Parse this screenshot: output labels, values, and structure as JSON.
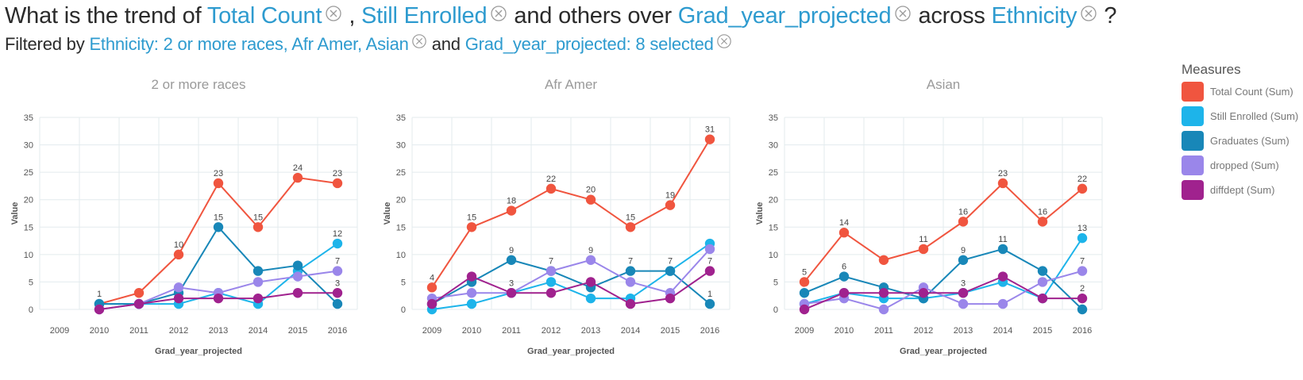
{
  "question": {
    "prefix": "What is the trend of",
    "measure1": "Total Count",
    "comma": ",",
    "measure2": "Still Enrolled",
    "and_others_over": "and others over",
    "xfield": "Grad_year_projected",
    "across": "across",
    "group_field": "Ethnicity",
    "qmark": "?"
  },
  "filter": {
    "prefix": "Filtered by",
    "filter1": "Ethnicity: 2 or more races, Afr Amer, Asian",
    "and": "and",
    "filter2": "Grad_year_projected: 8 selected"
  },
  "legend": {
    "title": "Measures",
    "items": [
      {
        "label": "Total Count (Sum)",
        "color": "#f0553f"
      },
      {
        "label": "Still Enrolled (Sum)",
        "color": "#1db4ea"
      },
      {
        "label": "Graduates (Sum)",
        "color": "#1887b8"
      },
      {
        "label": "dropped (Sum)",
        "color": "#9a86ea"
      },
      {
        "label": "diffdept (Sum)",
        "color": "#a0228e"
      }
    ]
  },
  "chart_data": [
    {
      "type": "line",
      "title": "2 or more races",
      "xlabel": "Grad_year_projected",
      "ylabel": "Value",
      "ylim": [
        0,
        35
      ],
      "yticks": [
        0,
        5,
        10,
        15,
        20,
        25,
        30,
        35
      ],
      "categories": [
        "2009",
        "2010",
        "2011",
        "2012",
        "2013",
        "2014",
        "2015",
        "2016"
      ],
      "series": [
        {
          "name": "Total Count (Sum)",
          "values": [
            null,
            1,
            3,
            10,
            23,
            15,
            24,
            23
          ],
          "labels": [
            "",
            "1",
            "",
            "10",
            "23",
            "15",
            "24",
            "23"
          ]
        },
        {
          "name": "Still Enrolled (Sum)",
          "values": [
            null,
            1,
            1,
            1,
            3,
            1,
            7,
            12
          ],
          "labels": [
            "",
            "",
            "",
            "",
            "",
            "",
            "",
            "12"
          ]
        },
        {
          "name": "Graduates (Sum)",
          "values": [
            null,
            1,
            1,
            3,
            15,
            7,
            8,
            1
          ],
          "labels": [
            "",
            "",
            "",
            "",
            "15",
            "",
            "",
            ""
          ]
        },
        {
          "name": "dropped (Sum)",
          "values": [
            null,
            0,
            1,
            4,
            3,
            5,
            6,
            7
          ],
          "labels": [
            "",
            "",
            "",
            "",
            "",
            "",
            "",
            "7"
          ]
        },
        {
          "name": "diffdept (Sum)",
          "values": [
            null,
            0,
            1,
            2,
            2,
            2,
            3,
            3
          ],
          "labels": [
            "",
            "",
            "",
            "",
            "",
            "",
            "",
            "3"
          ]
        }
      ]
    },
    {
      "type": "line",
      "title": "Afr Amer",
      "xlabel": "Grad_year_projected",
      "ylabel": "Value",
      "ylim": [
        0,
        35
      ],
      "yticks": [
        0,
        5,
        10,
        15,
        20,
        25,
        30,
        35
      ],
      "categories": [
        "2009",
        "2010",
        "2011",
        "2012",
        "2013",
        "2014",
        "2015",
        "2016"
      ],
      "series": [
        {
          "name": "Total Count (Sum)",
          "values": [
            4,
            15,
            18,
            22,
            20,
            15,
            19,
            31
          ],
          "labels": [
            "4",
            "15",
            "18",
            "22",
            "20",
            "15",
            "19",
            "31"
          ]
        },
        {
          "name": "Still Enrolled (Sum)",
          "values": [
            0,
            1,
            3,
            5,
            2,
            2,
            7,
            12
          ],
          "labels": [
            "",
            "",
            "",
            "",
            "",
            "",
            "",
            ""
          ]
        },
        {
          "name": "Graduates (Sum)",
          "values": [
            1,
            5,
            9,
            7,
            4,
            7,
            7,
            1
          ],
          "labels": [
            "",
            "",
            "9",
            "7",
            "",
            "7",
            "7",
            "1"
          ]
        },
        {
          "name": "dropped (Sum)",
          "values": [
            2,
            3,
            3,
            7,
            9,
            5,
            3,
            11
          ],
          "labels": [
            "",
            "",
            "3",
            "",
            "9",
            "",
            "",
            ""
          ]
        },
        {
          "name": "diffdept (Sum)",
          "values": [
            1,
            6,
            3,
            3,
            5,
            1,
            2,
            7
          ],
          "labels": [
            "",
            "",
            "",
            "",
            "",
            "",
            "",
            "7"
          ]
        }
      ]
    },
    {
      "type": "line",
      "title": "Asian",
      "xlabel": "Grad_year_projected",
      "ylabel": "Value",
      "ylim": [
        0,
        35
      ],
      "yticks": [
        0,
        5,
        10,
        15,
        20,
        25,
        30,
        35
      ],
      "categories": [
        "2009",
        "2010",
        "2011",
        "2012",
        "2013",
        "2014",
        "2015",
        "2016"
      ],
      "series": [
        {
          "name": "Total Count (Sum)",
          "values": [
            5,
            14,
            9,
            11,
            16,
            23,
            16,
            22
          ],
          "labels": [
            "5",
            "14",
            "",
            "11",
            "16",
            "23",
            "16",
            "22"
          ]
        },
        {
          "name": "Still Enrolled (Sum)",
          "values": [
            1,
            3,
            2,
            2,
            3,
            5,
            2,
            13
          ],
          "labels": [
            "",
            "",
            "",
            "",
            "",
            "",
            "",
            "13"
          ]
        },
        {
          "name": "Graduates (Sum)",
          "values": [
            3,
            6,
            4,
            2,
            9,
            11,
            7,
            0
          ],
          "labels": [
            "",
            "6",
            "",
            "",
            "9",
            "11",
            "",
            ""
          ]
        },
        {
          "name": "dropped (Sum)",
          "values": [
            1,
            2,
            0,
            4,
            1,
            1,
            5,
            7
          ],
          "labels": [
            "",
            "",
            "",
            "",
            "",
            "",
            "",
            "7"
          ]
        },
        {
          "name": "diffdept (Sum)",
          "values": [
            0,
            3,
            3,
            3,
            3,
            6,
            2,
            2
          ],
          "labels": [
            "",
            "",
            "",
            "",
            "3",
            "",
            "",
            "2"
          ]
        }
      ]
    }
  ]
}
